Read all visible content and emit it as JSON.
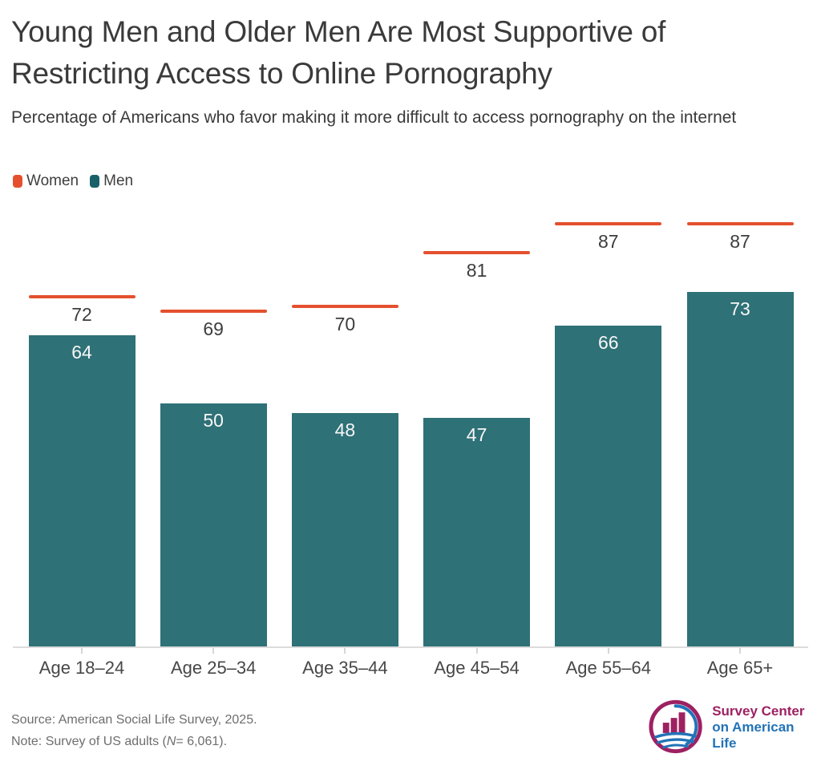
{
  "chart_data": {
    "type": "bar",
    "title": "Young Men and Older Men Are Most Supportive of Restricting Access to Online Pornography",
    "subtitle": "Percentage of Americans who favor making it more difficult to access pornography on the internet",
    "categories": [
      "Age 18–24",
      "Age 25–34",
      "Age 35–44",
      "Age 45–54",
      "Age 55–64",
      "Age 65+"
    ],
    "series": [
      {
        "name": "Women",
        "style": "line-marker",
        "color": "#e4502e",
        "values": [
          72,
          69,
          70,
          81,
          87,
          87
        ]
      },
      {
        "name": "Men",
        "style": "bar",
        "color": "#2e7177",
        "values": [
          64,
          50,
          48,
          47,
          66,
          73
        ]
      }
    ],
    "ylim": [
      0,
      100
    ],
    "grid": false,
    "value_labels": true,
    "legend_position": "top-left",
    "xlabel": "",
    "ylabel": ""
  },
  "legend": {
    "items": [
      {
        "label": "Women",
        "color": "#e4502e"
      },
      {
        "label": "Men",
        "color": "#19616a"
      }
    ]
  },
  "footer": {
    "source": "Source: American Social Life Survey, 2025.",
    "note_prefix": "Note: Survey of US adults (",
    "note_n": "N",
    "note_suffix": "= 6,061)."
  },
  "logo": {
    "line1": "Survey Center",
    "line2": "on American Life",
    "color1": "#9d2162",
    "color2": "#2273b8"
  }
}
